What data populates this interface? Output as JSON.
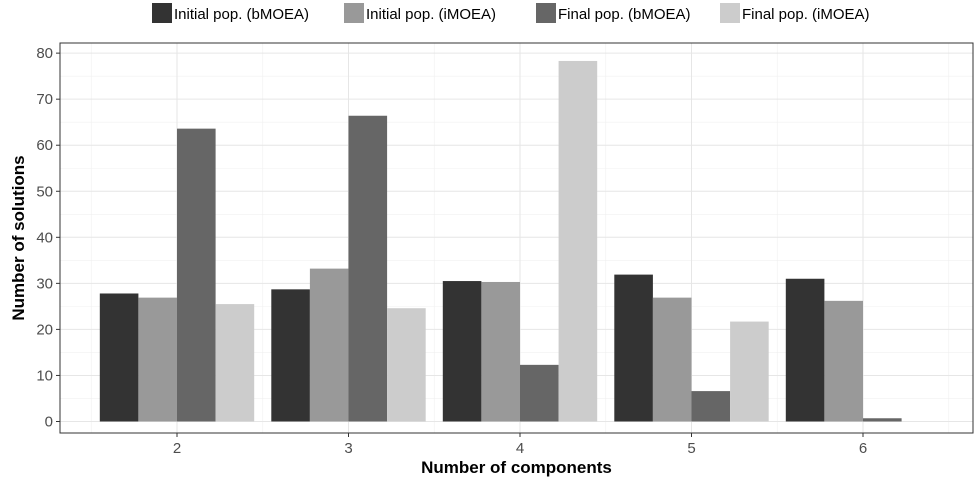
{
  "chart_data": {
    "type": "bar",
    "title": "",
    "xlabel": "Number of components",
    "ylabel": "Number of solutions",
    "categories": [
      "2",
      "3",
      "4",
      "5",
      "6"
    ],
    "series": [
      {
        "name": "Initial pop. (bMOEA)",
        "color": "#333333",
        "values": [
          27.8,
          28.7,
          30.5,
          31.9,
          31.0
        ]
      },
      {
        "name": "Initial pop. (iMOEA)",
        "color": "#999999",
        "values": [
          26.9,
          33.2,
          30.3,
          26.9,
          26.2
        ]
      },
      {
        "name": "Final pop. (bMOEA)",
        "color": "#666666",
        "values": [
          63.6,
          66.4,
          12.3,
          6.6,
          0.7
        ]
      },
      {
        "name": "Final pop. (iMOEA)",
        "color": "#cccccc",
        "values": [
          25.5,
          24.6,
          78.3,
          21.7,
          0
        ]
      }
    ],
    "ylim": [
      -2.5,
      82.2
    ],
    "yticks": [
      0,
      10,
      20,
      30,
      40,
      50,
      60,
      70,
      80
    ],
    "grid": true,
    "legend_position": "top"
  }
}
